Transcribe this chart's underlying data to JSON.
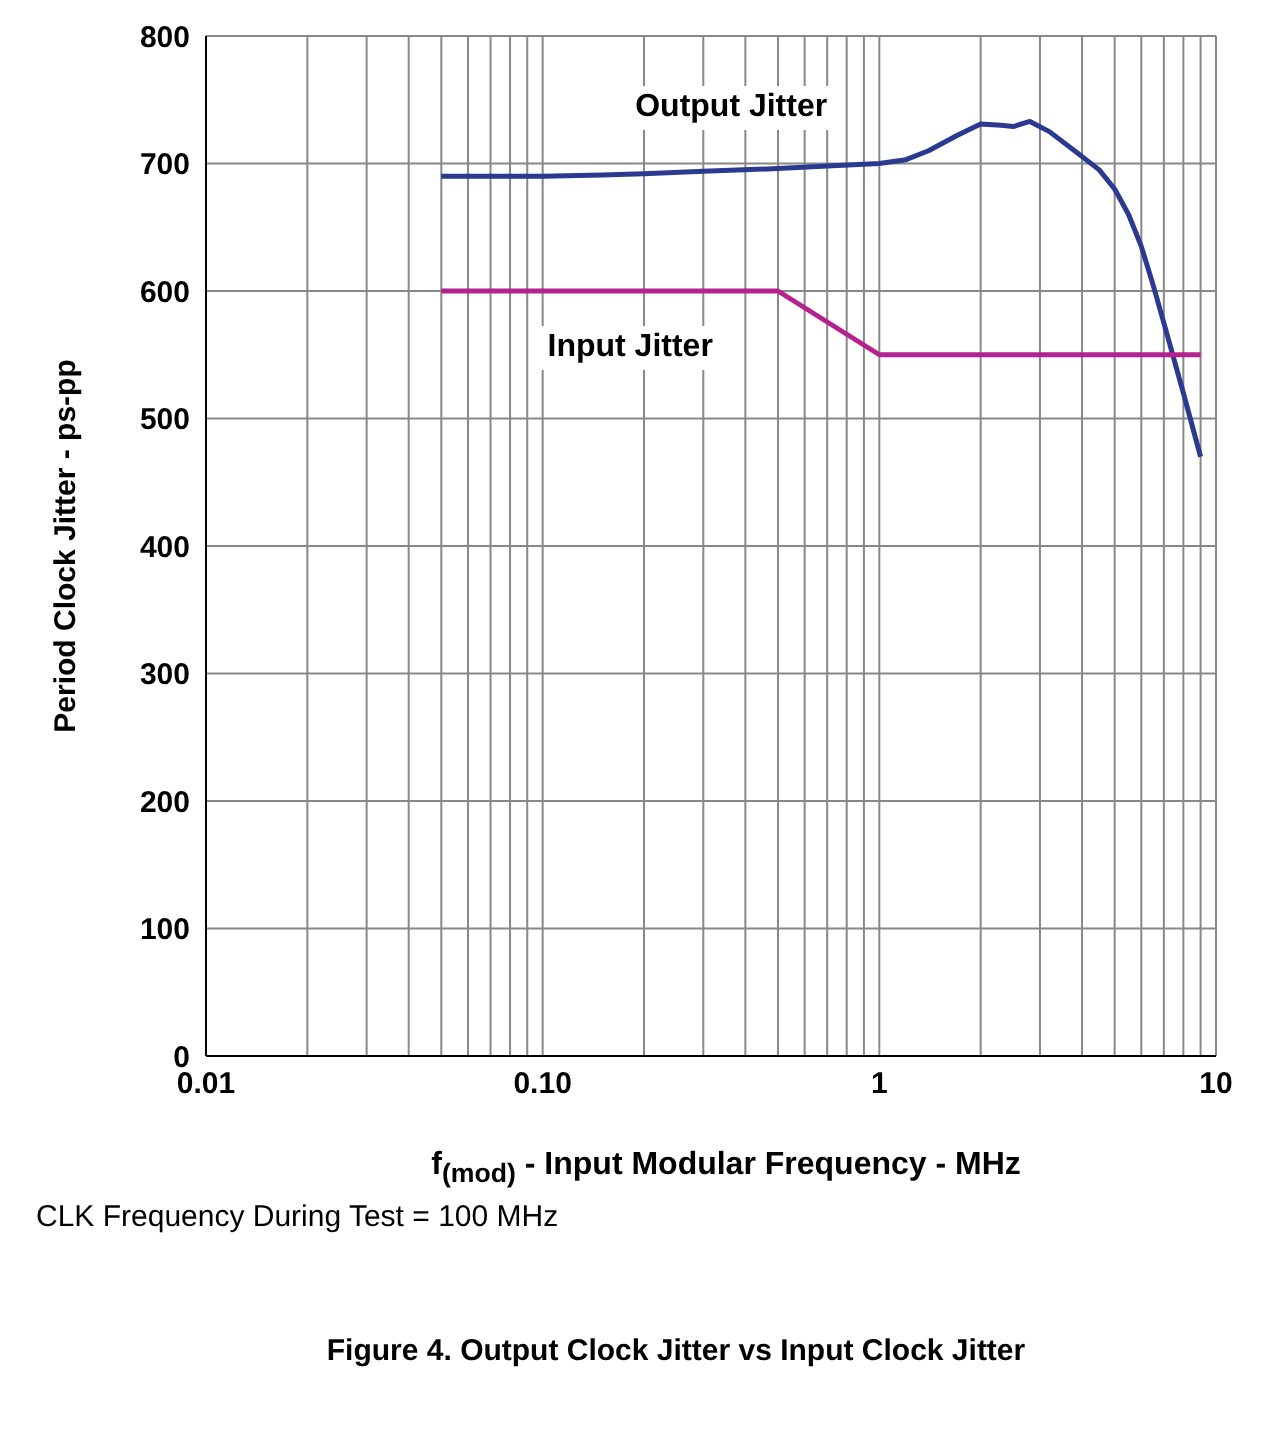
{
  "chart_data": {
    "type": "line",
    "title": "Figure 4. Output Clock Jitter vs Input Clock Jitter",
    "xlabel": "f$_{(mod)}$ - Input Modular Frequency - MHz",
    "ylabel": "Period Clock Jitter - ps-pp",
    "annotations": [
      "CLK Frequency During Test = 100 MHz"
    ],
    "log": "x",
    "grid": true,
    "marker": "none",
    "line_style": "solid",
    "xlim": [
      0.01,
      10
    ],
    "ylim": [
      0,
      800
    ],
    "xticks": [
      {
        "value": 0.01,
        "label": "0.01"
      },
      {
        "value": 0.02,
        "label": null
      },
      {
        "value": 0.03,
        "label": null
      },
      {
        "value": 0.04,
        "label": null
      },
      {
        "value": 0.05,
        "label": null
      },
      {
        "value": 0.06,
        "label": null
      },
      {
        "value": 0.07,
        "label": null
      },
      {
        "value": 0.08,
        "label": null
      },
      {
        "value": 0.09,
        "label": null
      },
      {
        "value": 0.1,
        "label": "0.10"
      },
      {
        "value": 0.2,
        "label": null
      },
      {
        "value": 0.3,
        "label": null
      },
      {
        "value": 0.4,
        "label": null
      },
      {
        "value": 0.5,
        "label": null
      },
      {
        "value": 0.6,
        "label": null
      },
      {
        "value": 0.7,
        "label": null
      },
      {
        "value": 0.8,
        "label": null
      },
      {
        "value": 0.9,
        "label": null
      },
      1,
      {
        "value": 2,
        "label": null
      },
      {
        "value": 3,
        "label": null
      },
      {
        "value": 4,
        "label": null
      },
      {
        "value": 5,
        "label": null
      },
      {
        "value": 6,
        "label": null
      },
      {
        "value": 7,
        "label": null
      },
      {
        "value": 8,
        "label": null
      },
      {
        "value": 9,
        "label": null
      },
      10
    ],
    "yticks": [
      0,
      100,
      200,
      300,
      400,
      500,
      600,
      700,
      800
    ],
    "series": [
      {
        "name": "Output Jitter",
        "color": "#2b3990",
        "x": [
          0.05,
          0.1,
          0.15,
          0.2,
          0.3,
          0.5,
          0.7,
          1,
          1.2,
          1.4,
          1.7,
          2,
          2.3,
          2.5,
          2.8,
          3.2,
          3.8,
          4.5,
          5,
          5.5,
          6,
          6.5,
          7,
          8,
          9
        ],
        "values": [
          690,
          690,
          691,
          692,
          694,
          696,
          698,
          700,
          703,
          710,
          722,
          731,
          730,
          729,
          733,
          725,
          710,
          695,
          680,
          660,
          635,
          605,
          575,
          520,
          470
        ]
      },
      {
        "name": "Input Jitter",
        "color": "#b5218f",
        "x": [
          0.05,
          0.5,
          1,
          9
        ],
        "values": [
          600,
          600,
          550,
          550
        ]
      }
    ]
  }
}
